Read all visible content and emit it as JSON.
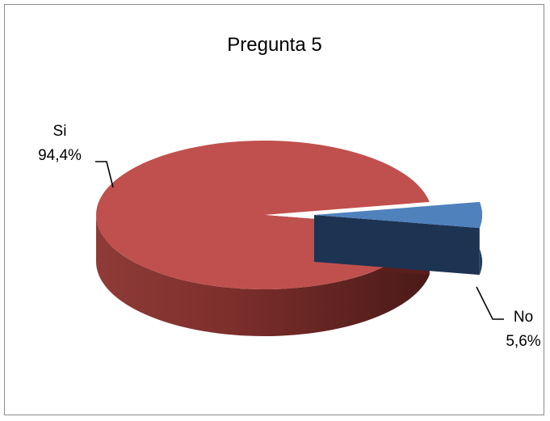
{
  "chart_data": {
    "type": "pie",
    "title": "Pregunta 5",
    "categories": [
      "Si",
      "No"
    ],
    "values": [
      94.4,
      5.6
    ],
    "data_labels": [
      "94,4%",
      "5,6%"
    ],
    "colors": {
      "Si": "#c0504d",
      "No": "#4f81bd"
    },
    "style": "3d-exploded"
  }
}
